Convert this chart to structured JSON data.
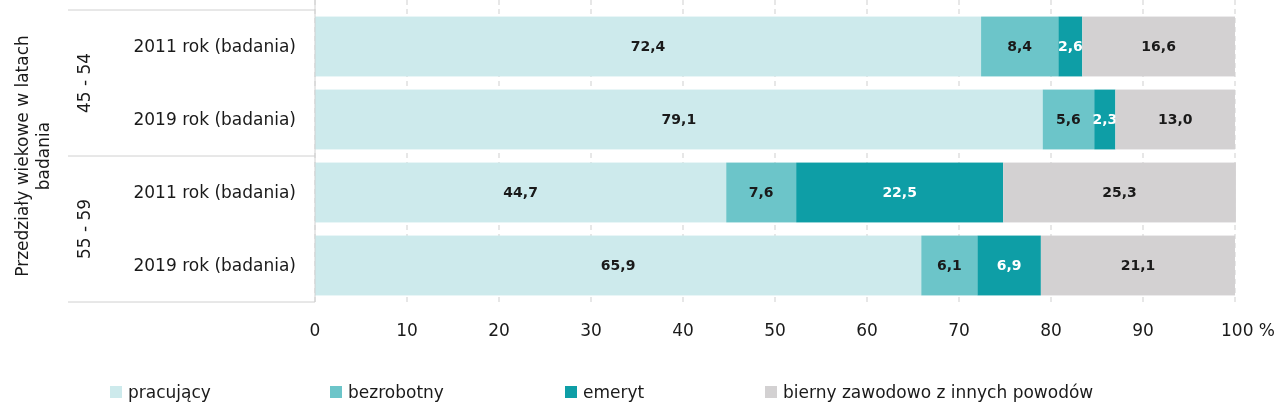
{
  "chart_data": {
    "type": "bar",
    "orientation": "horizontal",
    "stacked": true,
    "ylabel": "Przedziały wiekowe w latach badania",
    "categories": [
      "2011 rok (badania)",
      "2019 rok (badania)",
      "2011 rok (badania)",
      "2019 rok (badania)"
    ],
    "annotations": [
      "45 - 54",
      "55 - 59"
    ],
    "series": [
      {
        "name": "pracujący",
        "color": "#cdeaec",
        "values": [
          72.4,
          79.1,
          44.7,
          65.9
        ],
        "value_labels": [
          "72,4",
          "79,1",
          "44,7",
          "65,9"
        ]
      },
      {
        "name": "bezrobotny",
        "color": "#6cc5c9",
        "values": [
          8.4,
          5.6,
          7.6,
          6.1
        ],
        "value_labels": [
          "8,4",
          "5,6",
          "7,6",
          "6,1"
        ]
      },
      {
        "name": "emeryt",
        "color": "#0e9ea6",
        "values": [
          2.6,
          2.3,
          22.5,
          6.9
        ],
        "value_labels": [
          "2,6",
          "2,3",
          "22,5",
          "6,9"
        ]
      },
      {
        "name": "bierny zawodowo z innych powodów",
        "color": "#d3d1d2",
        "values": [
          16.6,
          13.0,
          25.3,
          21.1
        ],
        "value_labels": [
          "16,6",
          "13,0",
          "25,3",
          "21,1"
        ]
      }
    ],
    "xlim": [
      0,
      100
    ],
    "xticks": [
      0,
      10,
      20,
      30,
      40,
      50,
      60,
      70,
      80,
      90,
      {
        "value": 100,
        "label": "100 %"
      }
    ],
    "grid": "x",
    "legend": "bottom"
  }
}
